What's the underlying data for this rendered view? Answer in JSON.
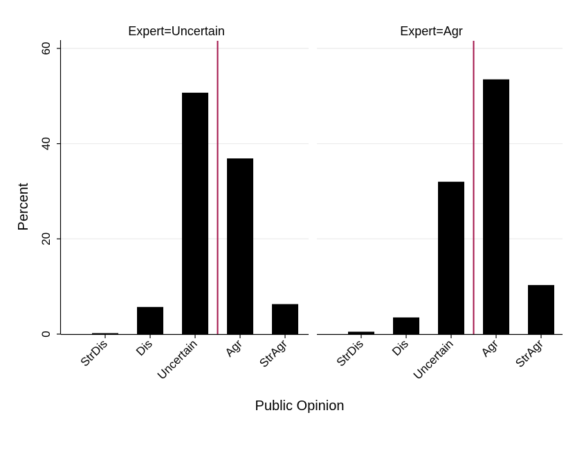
{
  "chart_data": {
    "type": "bar",
    "ylabel": "Percent",
    "xlabel": "Public Opinion",
    "ylim": [
      0,
      60
    ],
    "yticks": [
      0,
      20,
      40,
      60
    ],
    "grid": true,
    "bar_color": "#000000",
    "reference_line_color": "#a3134a",
    "grid_color": "#eaeaea",
    "categories": [
      "StrDis",
      "Dis",
      "Uncertain",
      "Agr",
      "StrAgr"
    ],
    "panels": [
      {
        "title": "Expert=Uncertain",
        "values": [
          0.2,
          5.7,
          50.7,
          36.9,
          6.3
        ],
        "reference_line_between": [
          "Uncertain",
          "Agr"
        ]
      },
      {
        "title": "Expert=Agr",
        "values": [
          0.5,
          3.5,
          32.0,
          53.5,
          10.3
        ],
        "reference_line_between": [
          "Uncertain",
          "Agr"
        ]
      }
    ]
  }
}
